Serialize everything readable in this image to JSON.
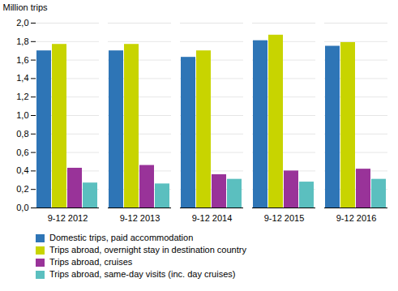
{
  "chart_data": {
    "type": "bar",
    "categories": [
      "9-12 2012",
      "9-12 2013",
      "9-12 2014",
      "9-12 2015",
      "9-12 2016"
    ],
    "series": [
      {
        "name": "Domestic trips, paid accommodation",
        "color": "#2e75b6",
        "values": [
          1.7,
          1.7,
          1.63,
          1.81,
          1.75
        ]
      },
      {
        "name": "Trips abroad, overnight stay in destination country",
        "color": "#c8d400",
        "values": [
          1.77,
          1.77,
          1.7,
          1.87,
          1.79
        ]
      },
      {
        "name": "Trips abroad, cruises",
        "color": "#993399",
        "values": [
          0.43,
          0.46,
          0.36,
          0.4,
          0.42
        ]
      },
      {
        "name": "Trips abroad, same-day visits (inc. day cruises)",
        "color": "#5bbfbf",
        "values": [
          0.27,
          0.26,
          0.31,
          0.28,
          0.31
        ]
      }
    ],
    "ylabel": "Million trips",
    "ylim": [
      0,
      2.0
    ],
    "yticks": [
      {
        "value": 0.0,
        "label": "0,0"
      },
      {
        "value": 0.2,
        "label": "0,2"
      },
      {
        "value": 0.4,
        "label": "0,4"
      },
      {
        "value": 0.6,
        "label": "0,6"
      },
      {
        "value": 0.8,
        "label": "0,8"
      },
      {
        "value": 1.0,
        "label": "1,0"
      },
      {
        "value": 1.2,
        "label": "1,2"
      },
      {
        "value": 1.4,
        "label": "1,4"
      },
      {
        "value": 1.6,
        "label": "1,6"
      },
      {
        "value": 1.8,
        "label": "1,8"
      },
      {
        "value": 2.0,
        "label": "2,0"
      }
    ],
    "grid": true,
    "legend": "bottom"
  }
}
